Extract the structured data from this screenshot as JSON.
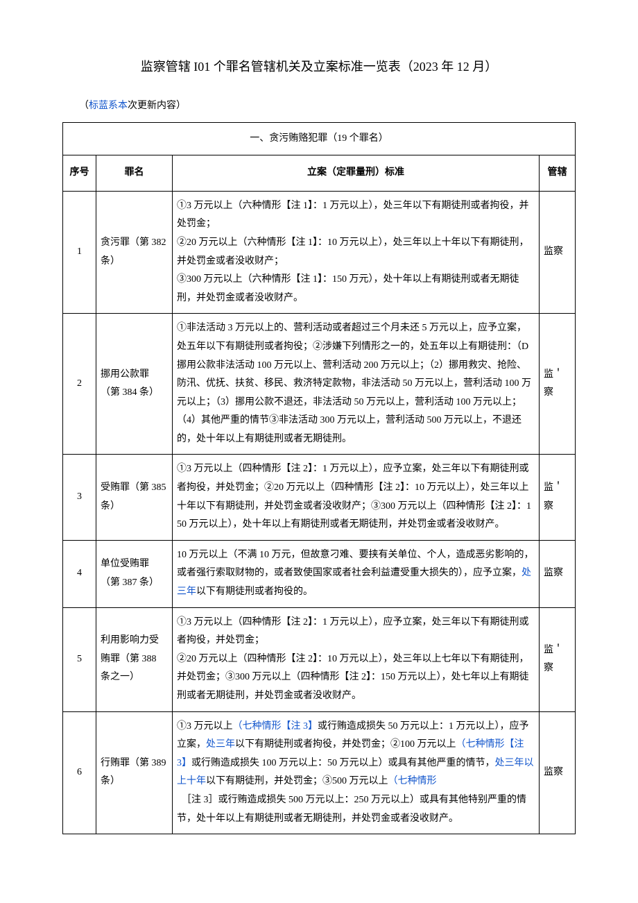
{
  "title": "监察管辖 I01 个罪名管辖机关及立案标准一览表（2023 年 12 月）",
  "note_prefix": "（",
  "note_blue": "标蓝系本",
  "note_suffix": "次更新内容）",
  "section": "一、贪污贿赂犯罪（19 个罪名）",
  "headers": {
    "idx": "序号",
    "name": "罪名",
    "std": "立案（定罪量刑）标准",
    "jur": "管辖"
  },
  "rows": [
    {
      "idx": "1",
      "name": "贪污罪（第 382 条）",
      "std_html": "①3 万元以上（六种情形【注 1】：1 万元以上），处三年以下有期徒刑或者拘役，并处罚金；<br>②20 万元以上（六种情形【注 1】：10 万元以上），处三年以上十年以下有期徒刑，并处罚金或者没收财产；<br>③300 万元以上（六种情形【注 1】：150 万元），处十年以上有期徒刑或者无期徒刑，并处罚金或者没收财产。",
      "jur": "监察"
    },
    {
      "idx": "2",
      "name": "挪用公款罪（第 384 条）",
      "std_html": "①非法活动 3 万元以上的、营利活动或者超过三个月未还 5 万元以上，应予立案，处五年以下有期徒刑或者拘役；②涉嫌下列情形之一的，处五年以上有期徒刑：（D 挪用公款非法活动 100 万元以上、营利活动 200 万元以上；（2）挪用救灾、抢险、防汛、优抚、扶贫、移民、救济特定款物，非法活动 50 万元以上，营利活动 100 万元以上；（3）挪用公款不退还，非法活动 50 万元以上，营利活动 100 万元以上；（4）其他严重的情节③非法活动 300 万元以上，营利活动 500 万元以上，不退还的，处十年以上有期徒刑或者无期徒刑。",
      "jur": "监＇察"
    },
    {
      "idx": "3",
      "name": "受贿罪（第 385 条）",
      "std_html": "①3 万元以上（四种情形【注 2】：1 万元以上），应予立案，处三年以下有期徒刑或者拘役，并处罚金；②20 万元以上（四种情形【注 2】：10 万元以上），处三年以上十年以下有期徒刑，并处罚金或者没收财产；③300 万元以上（四种情形【注 2】：150 万元以上），处十年以上有期徒刑或者无期徒刑，并处罚金或者没收财产。",
      "jur": "监＇察"
    },
    {
      "idx": "4",
      "name": "单位受贿罪（第 387 条）",
      "std_html": "10 万元以上（不满 10 万元，但故意刁难、要挟有关单位、个人，造成恶劣影响的，或者强行索取财物的，或者致使国家或者社会利益遭受重大损失的），应予立案，<span class=\"blue\">处三年</span>以下有期徒刑或者拘役的。",
      "jur": "监察"
    },
    {
      "idx": "5",
      "name": "利用影响力受贿罪（第 388 条之一）",
      "std_html": "①3 万元以上（四种情形【注 2】：1 万元以上），应予立案，处三年以下有期徒刑或者拘役，并处罚金；<br>②20 万元以上（四种情形【注 2】：10 万元以上），处三年以上七年以下有期徒刑，并处罚金；③300 万元以上（四种情形【注 2】：150 万元以上），处七年以上有期徒刑或者无期徒刑，并处罚金或者没收财产。",
      "jur": "监＇察"
    },
    {
      "idx": "6",
      "name": "行贿罪（第 389 条）",
      "std_html": "①3 万元以上<span class=\"blue\">（七种情形【注 3】</span>或行贿造成损失 50 万元以上：1 万元以上），应予立案，<span class=\"blue\">处三年</span>以下有期徒刑或者拘役，并处罚金；②100 万元以上<span class=\"blue\">（七种情形【注 3】</span>或行贿造成损失 100 万元以上：50 万元以上）或具有其他严重的情节，<span class=\"blue\">处三年以上十年</span>以下有期徒刑，并处罚金；③500 万元以上<span class=\"blue\">（七种情形</span><br>　［注 3］或行贿造成损失 500 万元以上：250 万元以上）或具有其他特别严重的情节，处十年以上有期徒刑或者无期徒刑，并处罚金或者没收财产。",
      "jur": "监察"
    }
  ]
}
